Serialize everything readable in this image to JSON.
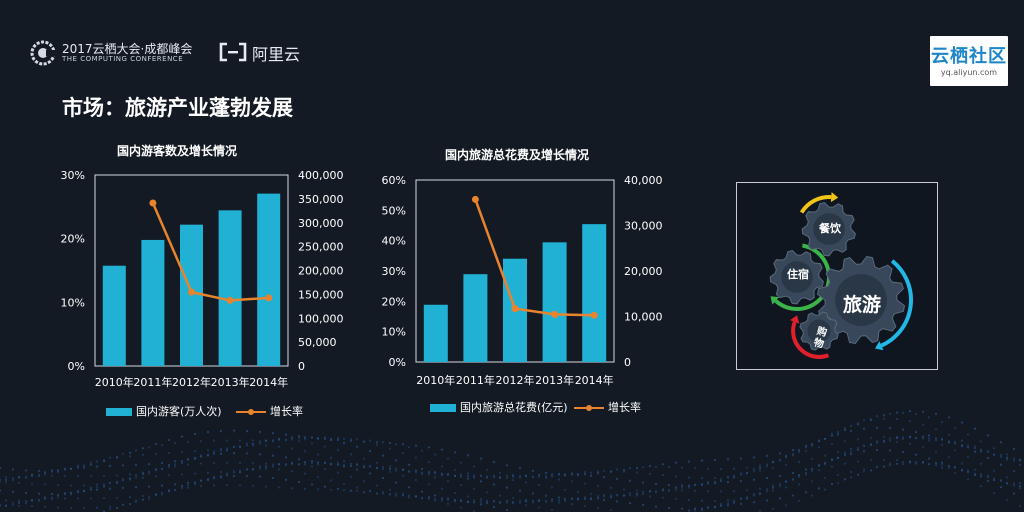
{
  "header": {
    "conference_line1": "2017云栖大会·成都峰会",
    "conference_line2": "THE COMPUTING CONFERENCE",
    "aliyun_label": "阿里云",
    "yq_title": "云栖社区",
    "yq_url": "yq.aliyun.com"
  },
  "page_title": "市场：旅游产业蓬勃发展",
  "chart_data": [
    {
      "type": "bar+line",
      "title": "国内游客数及增长情况",
      "categories": [
        "2010年",
        "2011年",
        "2012年",
        "2013年",
        "2014年"
      ],
      "series": [
        {
          "name": "国内游客(万人次)",
          "type": "bar",
          "axis": "right",
          "values": [
            210000,
            264000,
            296000,
            326000,
            361000
          ]
        },
        {
          "name": "增长率",
          "type": "line",
          "axis": "left",
          "values": [
            null,
            25.6,
            11.6,
            10.3,
            10.7
          ]
        }
      ],
      "left_axis": {
        "ylim": [
          0,
          30
        ],
        "ticks": [
          "0%",
          "10%",
          "20%",
          "30%"
        ]
      },
      "right_axis": {
        "ylim": [
          0,
          400000
        ],
        "ticks": [
          "0",
          "50,000",
          "100,000",
          "150,000",
          "200,000",
          "250,000",
          "300,000",
          "350,000",
          "400,000"
        ]
      },
      "legend_placement": "bottom",
      "colors": {
        "bar": "#21b1d4",
        "line": "#e8832e"
      }
    },
    {
      "type": "bar+line",
      "title": "国内旅游总花费及增长情况",
      "categories": [
        "2010年",
        "2011年",
        "2012年",
        "2013年",
        "2014年"
      ],
      "series": [
        {
          "name": "国内旅游总花费(亿元)",
          "type": "bar",
          "axis": "right",
          "values": [
            12580,
            19300,
            22700,
            26300,
            30300
          ]
        },
        {
          "name": "增长率",
          "type": "line",
          "axis": "left",
          "values": [
            null,
            53.6,
            17.6,
            15.7,
            15.4
          ]
        }
      ],
      "left_axis": {
        "ylim": [
          0,
          60
        ],
        "ticks": [
          "0%",
          "10%",
          "20%",
          "30%",
          "40%",
          "50%",
          "60%"
        ]
      },
      "right_axis": {
        "ylim": [
          0,
          40000
        ],
        "ticks": [
          "0",
          "10,000",
          "20,000",
          "30,000",
          "40,000"
        ]
      },
      "legend_placement": "bottom",
      "colors": {
        "bar": "#21b1d4",
        "line": "#e8832e"
      }
    }
  ],
  "diagram": {
    "center_label": "旅游",
    "food_label": "餐饮",
    "lodging_label": "住宿",
    "shopping_label": "购物",
    "colors": {
      "yellow": "#f2c318",
      "green": "#3bb44a",
      "red": "#e0202a",
      "blue": "#22b7e6"
    }
  }
}
